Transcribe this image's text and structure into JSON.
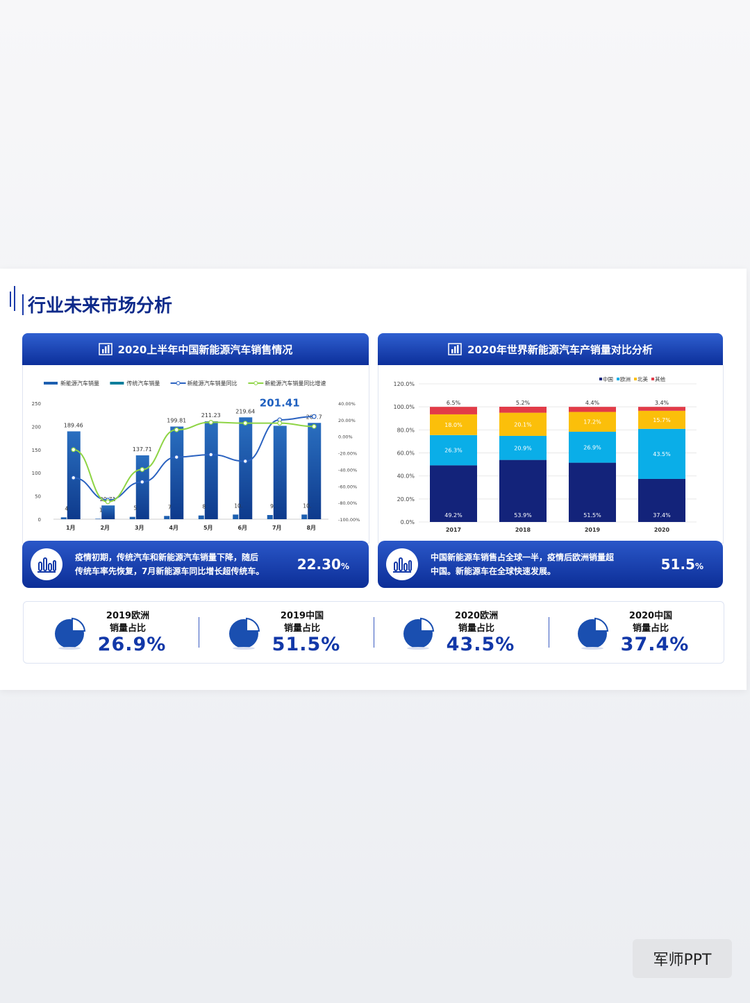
{
  "page": {
    "title": "行业未来市场分析",
    "brand": "军师PPT"
  },
  "left_panel": {
    "title": "2020上半年中国新能源汽车销售情况",
    "info_text_1": "疫情初期，传统汽车和新能源汽车销量下降，随后",
    "info_text_2": "传统车率先恢复，7月新能源车同比增长超传统车。",
    "info_value": "22.30",
    "info_unit": "%",
    "highlight": "201.41"
  },
  "right_panel": {
    "title": "2020年世界新能源汽车产销量对比分析",
    "info_text_1": "中国新能源车销售占全球一半，疫情后欧洲销量超",
    "info_text_2": "中国。新能源车在全球快速发展。",
    "info_value": "51.5",
    "info_unit": "%"
  },
  "stats": [
    {
      "label_1": "2019欧洲",
      "label_2": "销量占比",
      "value": "26.9%"
    },
    {
      "label_1": "2019中国",
      "label_2": "销量占比",
      "value": "51.5%"
    },
    {
      "label_1": "2020欧洲",
      "label_2": "销量占比",
      "value": "43.5%"
    },
    {
      "label_1": "2020中国",
      "label_2": "销量占比",
      "value": "37.4%"
    }
  ],
  "colors": {
    "primary": "#0c2e97",
    "bar": "#1d5fb0",
    "green": "#8ed445",
    "line": "#2a62c0",
    "china": "#13237a",
    "europe": "#0aaee8",
    "na": "#fbbf0a",
    "other": "#e23b48"
  },
  "chart_data": [
    {
      "type": "bar",
      "title": "",
      "legend": [
        "新能源汽车销量",
        "传统汽车销量",
        "新能源汽车销量同比",
        "新能源汽车销量同比增速"
      ],
      "categories": [
        "1月",
        "2月",
        "3月",
        "4月",
        "5月",
        "6月",
        "7月",
        "8月"
      ],
      "ylim": [
        0,
        250
      ],
      "yticks": [
        "0",
        "50",
        "100",
        "150",
        "200",
        "250"
      ],
      "y2lim": [
        -100,
        40
      ],
      "y2ticks": [
        "40.00%",
        "20.00%",
        "0.00%",
        "-20.00%",
        "-40.00%",
        "-60.00%",
        "-80.00%",
        "-100.00%"
      ],
      "series": [
        {
          "name": "传统汽车销量",
          "values": [
            189.46,
            29.71,
            137.71,
            199.81,
            211.23,
            219.64,
            201.41,
            207.7
          ],
          "labels": [
            "189.46",
            "29.71",
            "137.71",
            "199.81",
            "211.23",
            "219.64",
            "",
            "207.7"
          ]
        },
        {
          "name": "新能源汽车销量",
          "values": [
            4,
            1,
            5,
            7,
            8,
            10,
            9,
            10
          ],
          "labels": [
            "4",
            "1",
            "5",
            "7",
            "8",
            "10.",
            "9.",
            "10."
          ]
        },
        {
          "name": "新能源汽车销量同比",
          "values": [
            -50,
            -77,
            -55,
            -25,
            -22,
            -30,
            20,
            24
          ]
        },
        {
          "name": "新能源汽车销量同比增速",
          "values": [
            -16,
            -79,
            -40,
            8,
            17,
            16,
            16,
            12
          ]
        }
      ]
    },
    {
      "type": "bar",
      "title": "",
      "stacked": true,
      "legend": [
        "中国",
        "欧洲",
        "北美",
        "其他"
      ],
      "categories": [
        "2017",
        "2018",
        "2019",
        "2020"
      ],
      "ylim": [
        0,
        120
      ],
      "yticks": [
        "0.0%",
        "20.0%",
        "40.0%",
        "60.0%",
        "80.0%",
        "100.0%",
        "120.0%"
      ],
      "series": [
        {
          "name": "中国",
          "values": [
            49.2,
            53.9,
            51.5,
            37.4
          ]
        },
        {
          "name": "欧洲",
          "values": [
            26.3,
            20.9,
            26.9,
            43.5
          ]
        },
        {
          "name": "北美",
          "values": [
            18.0,
            20.1,
            17.2,
            15.7
          ]
        },
        {
          "name": "其他",
          "values": [
            6.5,
            5.2,
            4.4,
            3.4
          ]
        }
      ]
    }
  ]
}
